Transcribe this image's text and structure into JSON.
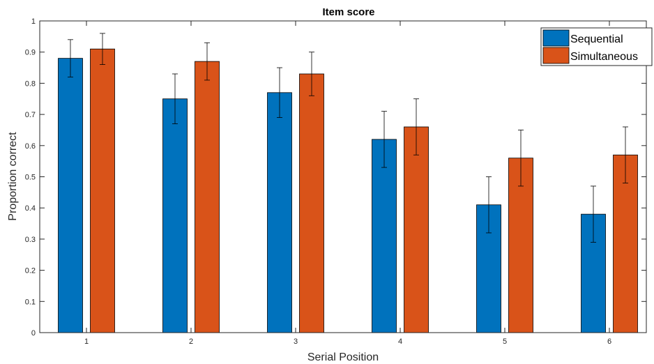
{
  "chart_data": {
    "type": "bar",
    "title": "Item score",
    "xlabel": "Serial Position",
    "ylabel": "Proportion correct",
    "categories": [
      "1",
      "2",
      "3",
      "4",
      "5",
      "6"
    ],
    "ylim": [
      0,
      1
    ],
    "yticks": [
      "0",
      "0.1",
      "0.2",
      "0.3",
      "0.4",
      "0.5",
      "0.6",
      "0.7",
      "0.8",
      "0.9",
      "1"
    ],
    "grid": false,
    "legend_position": "top-right",
    "series": [
      {
        "name": "Sequential",
        "color": "#0072BD",
        "values": [
          0.88,
          0.75,
          0.77,
          0.62,
          0.41,
          0.38
        ],
        "error": [
          0.06,
          0.08,
          0.08,
          0.09,
          0.09,
          0.09
        ]
      },
      {
        "name": "Simultaneous",
        "color": "#D95319",
        "values": [
          0.91,
          0.87,
          0.83,
          0.66,
          0.56,
          0.57
        ],
        "error": [
          0.05,
          0.06,
          0.07,
          0.09,
          0.09,
          0.09
        ]
      }
    ]
  }
}
